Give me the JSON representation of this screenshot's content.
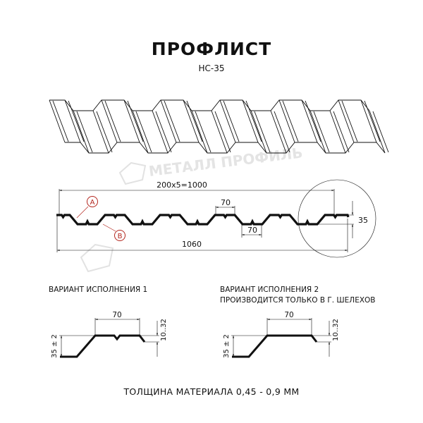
{
  "title": "ПРОФЛИСТ",
  "subtitle": "НС-35",
  "watermark": "МЕТАЛЛ ПРОФИЛЬ",
  "section": {
    "pitch_label": "200x5=1000",
    "width_label": "1060",
    "top_flat_label": "70",
    "bottom_flat_label": "70",
    "height_label": "35",
    "marker_a": "A",
    "marker_b": "B"
  },
  "variant1": {
    "caption": "ВАРИАНТ ИСПОЛНЕНИЯ 1",
    "width_label": "70",
    "height_label": "35 ± 2",
    "edge_label": "10..32"
  },
  "variant2": {
    "caption_line1": "ВАРИАНТ ИСПОЛНЕНИЯ 2",
    "caption_line2": "ПРОИЗВОДИТСЯ ТОЛЬКО В Г. ШЕЛЕХОВ",
    "width_label": "70",
    "height_label": "35 ± 2",
    "edge_label": "10..32"
  },
  "footer": "ТОЛЩИНА МАТЕРИАЛА 0,45 - 0,9 ММ",
  "colors": {
    "line": "#111111",
    "marker": "#b3261e",
    "watermark": "#d9d9d9"
  }
}
